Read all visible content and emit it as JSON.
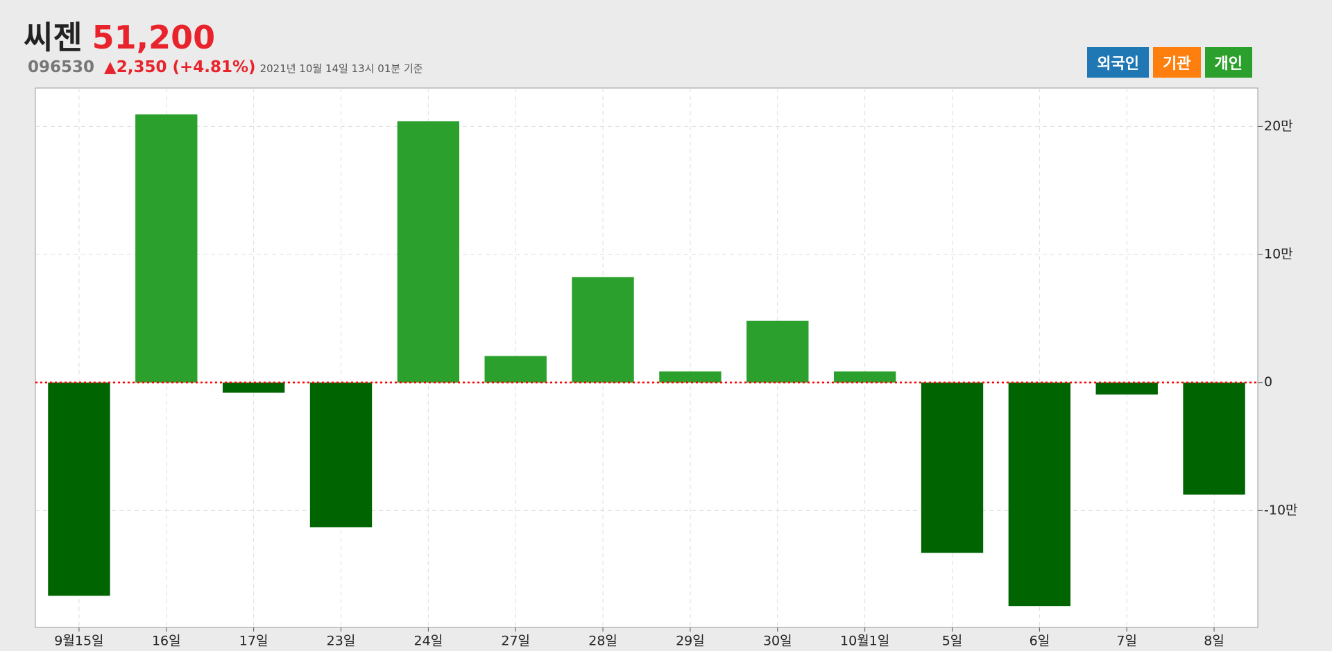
{
  "header": {
    "name": "씨젠",
    "price": "51,200",
    "code": "096530",
    "change": "▲2,350 (+4.81%)",
    "timestamp": "2021년 10월 14일 13시 01분 기준"
  },
  "buttons": [
    {
      "label": "외국인",
      "color": "#1f77b4"
    },
    {
      "label": "기관",
      "color": "#ff7f0e"
    },
    {
      "label": "개인",
      "color": "#2ca02c"
    }
  ],
  "chart_data": {
    "type": "bar",
    "categories": [
      "9월15일",
      "16일",
      "17일",
      "23일",
      "24일",
      "27일",
      "28일",
      "29일",
      "30일",
      "10월1일",
      "5일",
      "6일",
      "7일",
      "8일"
    ],
    "values": [
      -166600,
      209400,
      -8000,
      -113000,
      204000,
      20700,
      82300,
      8700,
      48200,
      8700,
      -133100,
      -174600,
      -9400,
      -87600
    ],
    "positive_color": "#2ca02c",
    "negative_color": "#006400",
    "zero_line_color": "#ff0000",
    "ylim": [
      -191300,
      230000
    ],
    "yticks": [
      {
        "value": -100000,
        "label": "-10만"
      },
      0,
      {
        "value": 100000,
        "label": "10만"
      },
      {
        "value": 200000,
        "label": "20만"
      }
    ],
    "grid": true,
    "y_axis_side": "right"
  }
}
